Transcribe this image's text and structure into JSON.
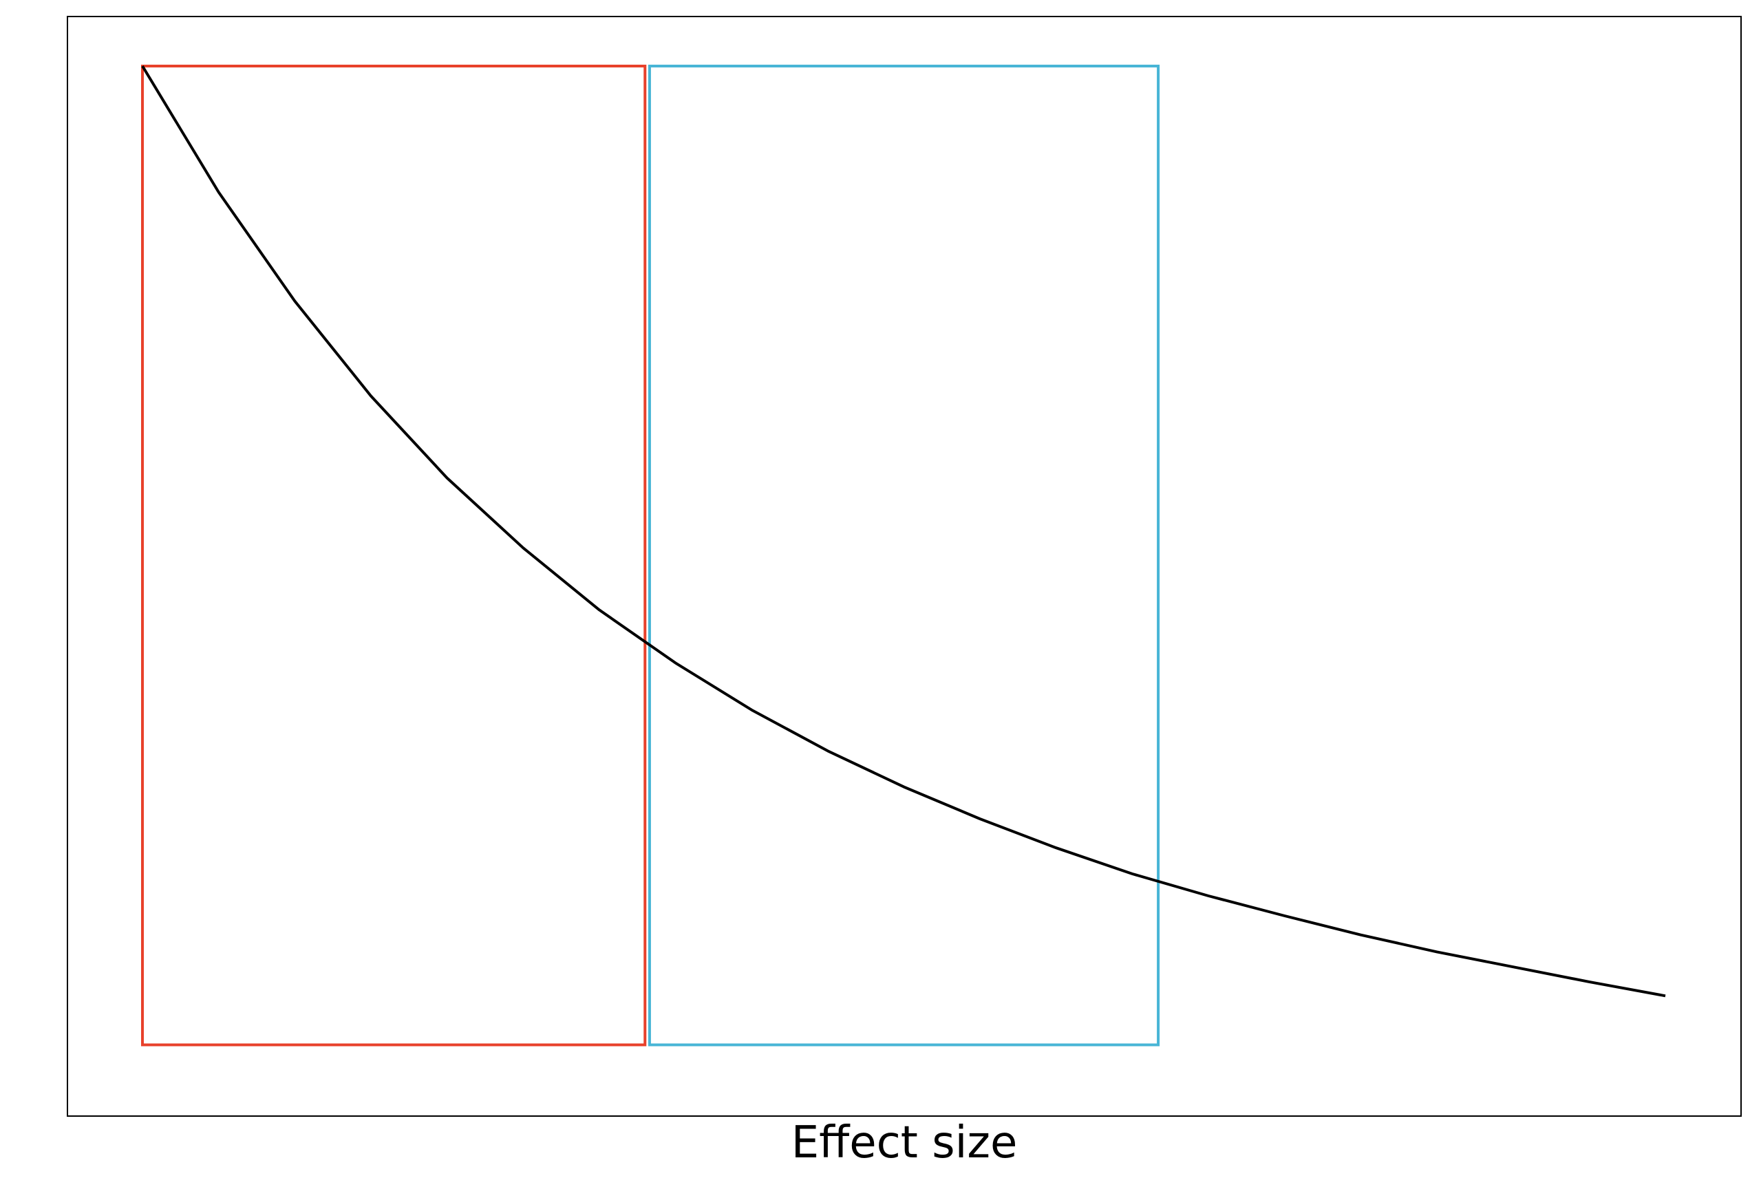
{
  "chart_data": {
    "type": "line",
    "title": "",
    "xlabel": "Effect size",
    "ylabel": "",
    "xlim": [
      0,
      1
    ],
    "ylim": [
      0,
      1
    ],
    "grid": false,
    "legend": "none",
    "series": [
      {
        "color": "#000000",
        "x": [
          0.0,
          0.05,
          0.1,
          0.15,
          0.2,
          0.25,
          0.3,
          0.35,
          0.4,
          0.45,
          0.5,
          0.55,
          0.6,
          0.65,
          0.7,
          0.75,
          0.8,
          0.85,
          0.9,
          0.95,
          1.0
        ],
        "y": [
          1.0,
          0.874,
          0.765,
          0.67,
          0.588,
          0.518,
          0.456,
          0.403,
          0.356,
          0.315,
          0.279,
          0.247,
          0.218,
          0.192,
          0.17,
          0.15,
          0.131,
          0.114,
          0.099,
          0.084,
          0.07
        ]
      }
    ],
    "regions": [
      {
        "color": "#e8412b",
        "x_range": [
          0.0,
          0.33
        ],
        "y_range": [
          0.021,
          1.0
        ]
      },
      {
        "color": "#48b5d6",
        "x_range": [
          0.333,
          0.667
        ],
        "y_range": [
          0.021,
          1.0
        ]
      }
    ]
  }
}
